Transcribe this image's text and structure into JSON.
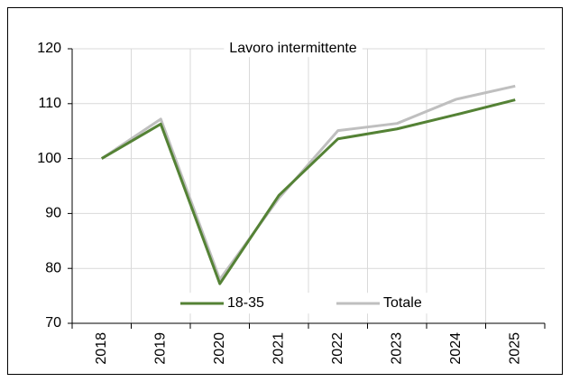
{
  "chart_data": {
    "type": "line",
    "title": "Lavoro intermittente",
    "categories": [
      "2018",
      "2019",
      "2020",
      "2021",
      "2022",
      "2023",
      "2024",
      "2025"
    ],
    "series": [
      {
        "name": "18-35",
        "color": "#548235",
        "values": [
          100,
          106.3,
          77.2,
          93.3,
          103.6,
          105.4,
          108,
          110.7
        ]
      },
      {
        "name": "Totale",
        "color": "#bfbfbf",
        "values": [
          100,
          107.2,
          78,
          92.8,
          105.1,
          106.4,
          110.8,
          113.2
        ]
      }
    ],
    "ylim": [
      70,
      120
    ],
    "yticks": [
      70,
      80,
      90,
      100,
      110,
      120
    ],
    "grid": true
  }
}
